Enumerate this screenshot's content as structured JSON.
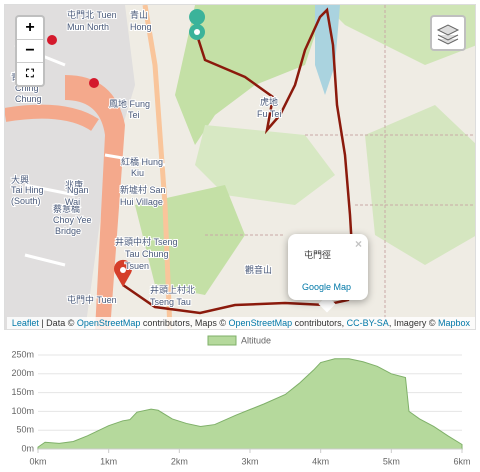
{
  "map": {
    "labels": [
      "屯門北 Tuen",
      "Mun North",
      "青松",
      "Ching",
      "Chung",
      "鳳地 Fung",
      "Tei",
      "紅橋 Hung",
      "Kiu",
      "大興",
      "Tai Hing",
      "(South)",
      "新墟村 San",
      "Hui Village",
      "井頭中村 Tseng",
      "Tau Chung",
      "Tsuen",
      "蔡意橋",
      "Choy Yee",
      "Bridge",
      "屯門中 Tuen",
      "井頭上村北",
      "Tseng Tau",
      "觀音山",
      "虎地",
      "Fu Tei",
      "青山",
      "Hong",
      "兆康",
      "Ngan",
      "Wai"
    ],
    "controls": {
      "zoom_in": "+",
      "zoom_out": "−",
      "fullscreen": "⛶"
    },
    "popup": {
      "title": "屯門徑",
      "link": "Google Map",
      "close": "×"
    },
    "attribution": [
      "Leaflet",
      " | Data © ",
      "OpenStreetMap",
      " contributors, Maps © ",
      "OpenStreetMap",
      " contributors, ",
      "CC-BY-SA",
      ", Imagery © ",
      "Mapbox"
    ]
  },
  "chart_data": {
    "type": "area",
    "x": [
      0,
      0.1,
      0.3,
      0.5,
      0.7,
      1.0,
      1.2,
      1.3,
      1.4,
      1.6,
      1.7,
      1.9,
      2.1,
      2.3,
      2.5,
      2.8,
      3.0,
      3.2,
      3.5,
      3.7,
      3.9,
      4.0,
      4.2,
      4.4,
      4.6,
      4.8,
      5.0,
      5.2,
      5.25,
      5.4,
      5.6,
      5.8,
      6.0
    ],
    "series": [
      {
        "name": "Altitude",
        "color": "#b5d99c",
        "values": [
          5,
          18,
          15,
          20,
          35,
          62,
          75,
          78,
          98,
          106,
          103,
          80,
          68,
          60,
          65,
          90,
          105,
          120,
          145,
          175,
          210,
          230,
          240,
          240,
          232,
          220,
          200,
          190,
          100,
          80,
          60,
          35,
          12
        ]
      }
    ],
    "xlim": [
      0,
      6
    ],
    "ylim": [
      0,
      250
    ],
    "xticks": [
      {
        "value": 0,
        "label": "0km"
      },
      {
        "value": 1,
        "label": "1km"
      },
      {
        "value": 2,
        "label": "2km"
      },
      {
        "value": 3,
        "label": "3km"
      },
      {
        "value": 4,
        "label": "4km"
      },
      {
        "value": 5,
        "label": "5km"
      },
      {
        "value": 6,
        "label": "6km"
      }
    ],
    "yticks": [
      {
        "value": 0,
        "label": "0m"
      },
      {
        "value": 50,
        "label": "50m"
      },
      {
        "value": 100,
        "label": "100m"
      },
      {
        "value": 150,
        "label": "150m"
      },
      {
        "value": 200,
        "label": "200m"
      },
      {
        "value": 250,
        "label": "250m"
      }
    ],
    "grid": true
  }
}
